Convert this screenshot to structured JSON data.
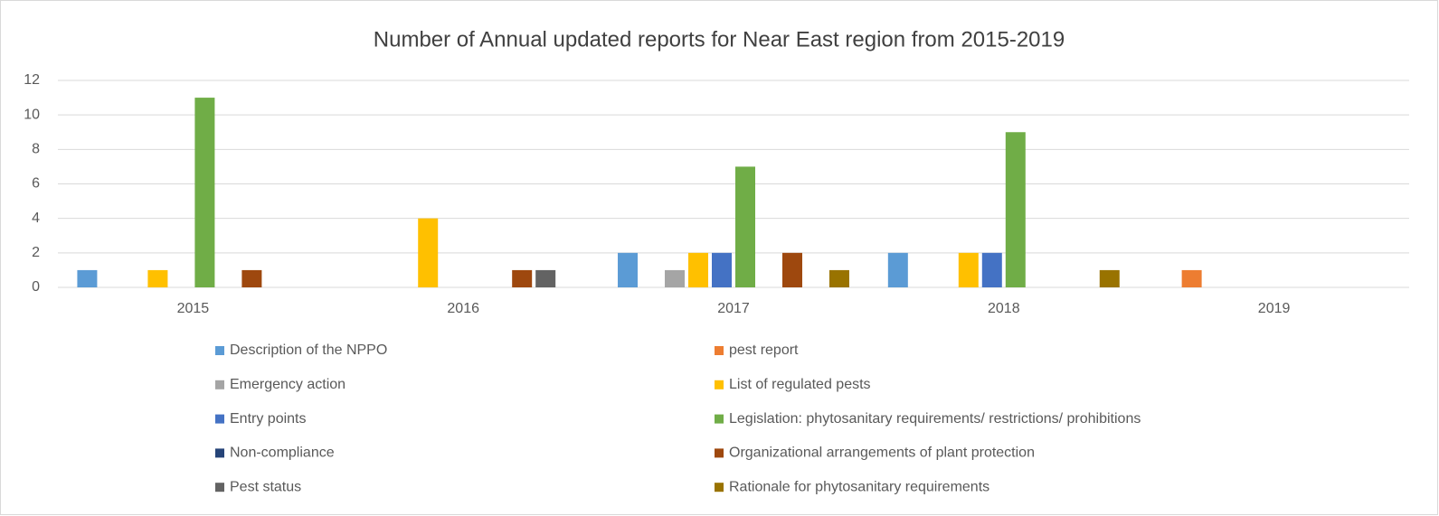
{
  "chart_data": {
    "type": "bar",
    "title": "Number of Annual updated reports for Near East region from 2015-2019",
    "categories": [
      "2015",
      "2016",
      "2017",
      "2018",
      "2019"
    ],
    "series": [
      {
        "name": "Description of the NPPO",
        "color": "#5b9bd5",
        "values": [
          1,
          0,
          2,
          2,
          0
        ]
      },
      {
        "name": "pest report",
        "color": "#ed7d31",
        "values": [
          0,
          0,
          0,
          0,
          1
        ]
      },
      {
        "name": "Emergency action",
        "color": "#a5a5a5",
        "values": [
          0,
          0,
          1,
          0,
          0
        ]
      },
      {
        "name": "List of regulated pests",
        "color": "#ffc000",
        "values": [
          1,
          4,
          2,
          2,
          0
        ]
      },
      {
        "name": "Entry points",
        "color": "#4472c4",
        "values": [
          0,
          0,
          2,
          2,
          0
        ]
      },
      {
        "name": "Legislation: phytosanitary requirements/ restrictions/ prohibitions",
        "color": "#70ad47",
        "values": [
          11,
          0,
          7,
          9,
          0
        ]
      },
      {
        "name": "Non-compliance",
        "color": "#264478",
        "values": [
          0,
          0,
          0,
          0,
          0
        ]
      },
      {
        "name": "Organizational arrangements of plant protection",
        "color": "#9e480e",
        "values": [
          1,
          1,
          2,
          0,
          0
        ]
      },
      {
        "name": "Pest status",
        "color": "#636363",
        "values": [
          0,
          1,
          0,
          0,
          0
        ]
      },
      {
        "name": "Rationale for phytosanitary requirements",
        "color": "#997300",
        "values": [
          0,
          0,
          1,
          1,
          0
        ]
      }
    ],
    "ylim": [
      0,
      12
    ],
    "yticks": [
      0,
      2,
      4,
      6,
      8,
      10,
      12
    ],
    "grid": true,
    "legend": "bottom"
  }
}
